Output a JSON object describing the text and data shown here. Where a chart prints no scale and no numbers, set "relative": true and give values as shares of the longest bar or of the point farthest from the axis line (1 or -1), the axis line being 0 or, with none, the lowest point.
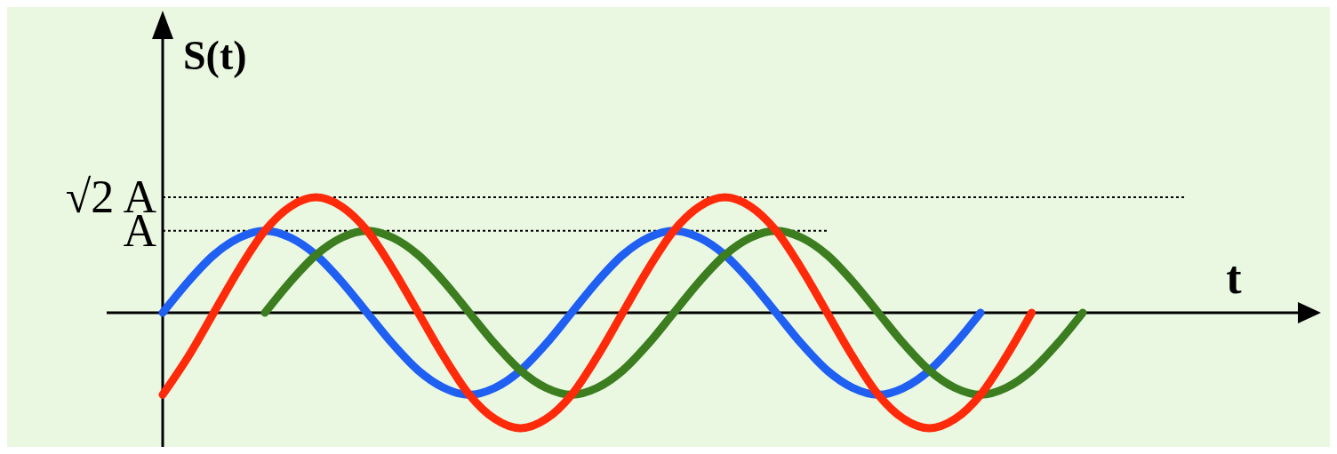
{
  "chart_data": {
    "type": "line",
    "ylabel": "S(t)",
    "xlabel": "t",
    "relative": true,
    "categories": [
      null,
      null,
      null,
      null,
      null,
      null,
      null,
      null,
      null,
      null,
      null,
      null,
      null,
      null,
      null,
      null,
      null,
      null,
      null,
      null,
      null,
      null,
      null,
      null,
      null,
      null,
      null,
      null,
      null,
      null,
      null,
      null,
      null,
      null,
      null,
      null,
      null,
      null,
      null,
      null,
      null,
      null,
      null,
      null,
      null,
      null
    ],
    "series": [
      {
        "color": "#1f5ff2",
        "values": [
          0,
          0.27,
          0.5,
          0.65,
          0.71,
          0.65,
          0.5,
          0.27,
          0,
          -0.27,
          -0.5,
          -0.65,
          -0.71,
          -0.65,
          -0.5,
          -0.27,
          0,
          0.27,
          0.5,
          0.65,
          0.71,
          0.65,
          0.5,
          0.27,
          0,
          -0.27,
          -0.5,
          -0.65,
          -0.71,
          -0.65,
          -0.5,
          -0.27,
          0,
          null,
          null,
          null,
          null,
          null,
          null,
          null,
          null,
          null,
          null,
          null,
          null,
          null
        ]
      },
      {
        "color": "#3b7d1f",
        "values": [
          null,
          null,
          null,
          null,
          0,
          0.27,
          0.5,
          0.65,
          0.71,
          0.65,
          0.5,
          0.27,
          0,
          -0.27,
          -0.5,
          -0.65,
          -0.71,
          -0.65,
          -0.5,
          -0.27,
          0,
          0.27,
          0.5,
          0.65,
          0.71,
          0.65,
          0.5,
          0.27,
          0,
          -0.27,
          -0.5,
          -0.65,
          -0.71,
          -0.65,
          -0.5,
          -0.27,
          0,
          null,
          null,
          null,
          null,
          null,
          null,
          null,
          null,
          null
        ]
      },
      {
        "color": "#ff2a0a",
        "values": [
          -0.71,
          -0.38,
          0,
          0.38,
          0.71,
          0.92,
          1,
          0.92,
          0.71,
          0.38,
          0,
          -0.38,
          -0.71,
          -0.92,
          -1,
          -0.92,
          -0.71,
          -0.38,
          0,
          0.38,
          0.71,
          0.92,
          1,
          0.92,
          0.71,
          0.38,
          0,
          -0.38,
          -0.71,
          -0.92,
          -1,
          -0.92,
          -0.71,
          -0.38,
          0,
          null,
          null,
          null,
          null,
          null,
          null,
          null,
          null,
          null,
          null,
          null
        ]
      }
    ],
    "ref_lines": [
      {
        "axis": "y",
        "value": 0.71,
        "label": "A",
        "line_style": "dotted"
      },
      {
        "axis": "y",
        "value": 1,
        "label": "√2 A",
        "line_style": "dotted"
      }
    ],
    "line_style": "solid",
    "marker": "none"
  }
}
